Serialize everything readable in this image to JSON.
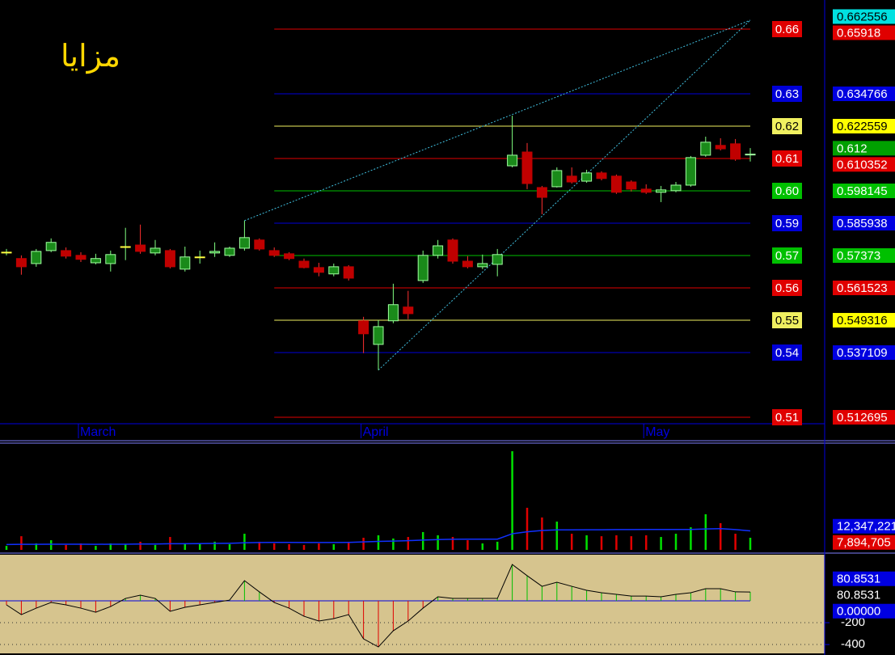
{
  "chart_data": [
    {
      "type": "candlestick",
      "title": "مزايا",
      "title_color": "#ffd700",
      "categories": [
        null,
        null,
        null,
        null,
        null,
        "March",
        null,
        null,
        null,
        null,
        null,
        null,
        null,
        null,
        null,
        null,
        null,
        null,
        null,
        null,
        null,
        null,
        null,
        null,
        "April",
        null,
        null,
        null,
        null,
        null,
        null,
        null,
        null,
        null,
        null,
        null,
        null,
        null,
        null,
        null,
        null,
        null,
        null,
        "May",
        null,
        null,
        null,
        null,
        null,
        null,
        null
      ],
      "open": [
        0.575,
        0.5726,
        0.5707,
        0.5756,
        0.5756,
        0.5738,
        0.571,
        0.5707,
        0.5771,
        0.5777,
        0.5747,
        0.5756,
        0.5686,
        0.5732,
        0.5747,
        0.5738,
        0.5765,
        0.5796,
        0.5756,
        0.5744,
        0.5716,
        0.5692,
        0.5668,
        0.5695,
        0.5491,
        0.5402,
        0.5491,
        0.5543,
        0.5643,
        0.5738,
        0.5796,
        0.5716,
        0.5695,
        0.5704,
        0.6076,
        0.6128,
        0.5994,
        0.5997,
        0.6037,
        0.6018,
        0.6049,
        0.6037,
        0.6015,
        0.5988,
        0.5976,
        0.5982,
        0.6003,
        0.6116,
        0.6153,
        0.6159,
        0.6119
      ],
      "high": [
        0.5762,
        0.5738,
        0.5762,
        0.5802,
        0.5768,
        0.575,
        0.5744,
        0.5756,
        0.5842,
        0.5854,
        0.5796,
        0.5762,
        0.5771,
        0.5756,
        0.5787,
        0.5771,
        0.5869,
        0.5802,
        0.5768,
        0.575,
        0.5726,
        0.571,
        0.5707,
        0.5701,
        0.5506,
        0.5494,
        0.5631,
        0.5604,
        0.5756,
        0.5796,
        0.5802,
        0.5735,
        0.5741,
        0.5762,
        0.6265,
        0.6162,
        0.6,
        0.607,
        0.607,
        0.6061,
        0.6055,
        0.6043,
        0.6021,
        0.6006,
        0.6,
        0.6015,
        0.6113,
        0.6186,
        0.618,
        0.6177,
        0.6143
      ],
      "low": [
        0.5738,
        0.5665,
        0.5695,
        0.575,
        0.5726,
        0.5713,
        0.5704,
        0.5677,
        0.572,
        0.5744,
        0.5738,
        0.5689,
        0.5677,
        0.5707,
        0.5732,
        0.5732,
        0.5756,
        0.5756,
        0.5732,
        0.572,
        0.5689,
        0.5659,
        0.5659,
        0.5643,
        0.5369,
        0.5305,
        0.5482,
        0.5497,
        0.5634,
        0.5726,
        0.5707,
        0.5689,
        0.5686,
        0.5659,
        0.607,
        0.5988,
        0.5893,
        0.5994,
        0.6009,
        0.6012,
        0.6021,
        0.597,
        0.5979,
        0.597,
        0.5939,
        0.5976,
        0.5997,
        0.611,
        0.6134,
        0.6095,
        0.6092
      ],
      "close": [
        0.575,
        0.5695,
        0.5753,
        0.5787,
        0.5735,
        0.5723,
        0.5726,
        0.5741,
        0.5771,
        0.5753,
        0.5765,
        0.5695,
        0.5732,
        0.5732,
        0.5753,
        0.5765,
        0.5805,
        0.5762,
        0.5738,
        0.5726,
        0.5692,
        0.5674,
        0.5695,
        0.5652,
        0.5442,
        0.5469,
        0.5552,
        0.5518,
        0.5738,
        0.5774,
        0.5716,
        0.5695,
        0.5707,
        0.5741,
        0.6116,
        0.6009,
        0.5957,
        0.6058,
        0.6015,
        0.6049,
        0.6028,
        0.5976,
        0.5988,
        0.5976,
        0.5985,
        0.6003,
        0.6107,
        0.6165,
        0.614,
        0.6101,
        0.612
      ],
      "up_color": "#1a8a1a",
      "down_color": "#c00000",
      "flat_color": "#ffff40",
      "ylim": [
        0.51026,
        0.67017
      ],
      "fib_from": 18,
      "levels": [
        {
          "value": 0.65918,
          "label": "0.66",
          "color": "#e00000"
        },
        {
          "value": 0.634766,
          "label": "0.63",
          "color": "#0000d8"
        },
        {
          "value": 0.622559,
          "label": "0.62",
          "color": "#f0f060"
        },
        {
          "value": 0.610352,
          "label": "0.61",
          "color": "#e00000"
        },
        {
          "value": 0.598145,
          "label": "0.60",
          "color": "#00c000"
        },
        {
          "value": 0.585938,
          "label": "0.59",
          "color": "#0000d8"
        },
        {
          "value": 0.57373,
          "label": "0.57",
          "color": "#00c000"
        },
        {
          "value": 0.561523,
          "label": "0.56",
          "color": "#e00000"
        },
        {
          "value": 0.549316,
          "label": "0.55",
          "color": "#f0f060"
        },
        {
          "value": 0.537109,
          "label": "0.54",
          "color": "#0000d8"
        },
        {
          "value": 0.512695,
          "label": "0.51",
          "color": "#e00000"
        }
      ],
      "trendlines": [
        {
          "x": [
            16,
            50
          ],
          "y": [
            0.5869,
            0.662556
          ]
        },
        {
          "x": [
            25,
            50
          ],
          "y": [
            0.5305,
            0.662556
          ]
        }
      ],
      "trend_color": "#40c0e0",
      "markers": [
        {
          "value": 0.662556,
          "label": "0.662556",
          "color": "#00e0e0"
        },
        {
          "value": 0.65918,
          "label": "0.65918",
          "color": "#e00000"
        },
        {
          "value": 0.634766,
          "label": "0.634766",
          "color": "#0000e0"
        },
        {
          "value": 0.622559,
          "label": "0.622559",
          "color": "#ffff00"
        },
        {
          "value": 0.612,
          "label": "0.612",
          "color": "#00a000"
        },
        {
          "value": 0.610352,
          "label": "0.610352",
          "color": "#e00000"
        },
        {
          "value": 0.598145,
          "label": "0.598145",
          "color": "#00c000"
        },
        {
          "value": 0.585938,
          "label": "0.585938",
          "color": "#0000e0"
        },
        {
          "value": 0.57373,
          "label": "0.57373",
          "color": "#00c000"
        },
        {
          "value": 0.561523,
          "label": "0.561523",
          "color": "#e00000"
        },
        {
          "value": 0.549316,
          "label": "0.549316",
          "color": "#ffff00"
        },
        {
          "value": 0.537109,
          "label": "0.537109",
          "color": "#0000e0"
        },
        {
          "value": 0.512695,
          "label": "0.512695",
          "color": "#e00000"
        }
      ]
    },
    {
      "type": "volume",
      "values": [
        2600000,
        8900000,
        4200000,
        6300000,
        3200000,
        4200000,
        2600000,
        4200000,
        3700000,
        5300000,
        3200000,
        8400000,
        3700000,
        4200000,
        5300000,
        3700000,
        10500000,
        5300000,
        4200000,
        3700000,
        3200000,
        4200000,
        3700000,
        5300000,
        7900000,
        9500000,
        7400000,
        8400000,
        11600000,
        9500000,
        8400000,
        6300000,
        4200000,
        5300000,
        64200000,
        27400000,
        21100000,
        18400000,
        10500000,
        9500000,
        8900000,
        9500000,
        8900000,
        9500000,
        8400000,
        10500000,
        14700000,
        23200000,
        17400000,
        10500000,
        7894705
      ],
      "ma": [
        3500000,
        3600000,
        3600000,
        3700000,
        3700000,
        3700000,
        3600000,
        3700000,
        3700000,
        3800000,
        3800000,
        4000000,
        4000000,
        4100000,
        4200000,
        4300000,
        4600000,
        4800000,
        4900000,
        4900000,
        4800000,
        4800000,
        4800000,
        4900000,
        5200000,
        5500000,
        5700000,
        6000000,
        6400000,
        6700000,
        6900000,
        7000000,
        7000000,
        7000000,
        10500000,
        11800000,
        12600000,
        13000000,
        13000000,
        13100000,
        13100000,
        13200000,
        13200000,
        13300000,
        13300000,
        13300000,
        13300000,
        13600000,
        13800000,
        13200000,
        12347221
      ],
      "up_color": "#00e000",
      "down_color": "#e00000",
      "ma_color": "#1030ff",
      "ylim": [
        0,
        69470000
      ],
      "markers": [
        {
          "value": 12347221,
          "label": "12,347,221",
          "color": "#0000e0"
        },
        {
          "value": 7894705,
          "label": "7,894,705",
          "color": "#e00000"
        }
      ]
    },
    {
      "type": "oscillator",
      "values": [
        -37,
        -126,
        -67,
        -15,
        -37,
        -67,
        -104,
        -52,
        22,
        52,
        22,
        -96,
        -59,
        -37,
        -15,
        7,
        185,
        82,
        -15,
        -67,
        -141,
        -185,
        -163,
        -126,
        -348,
        -422,
        -274,
        -185,
        -67,
        37,
        22,
        22,
        22,
        22,
        333,
        230,
        133,
        170,
        133,
        96,
        74,
        59,
        44,
        44,
        37,
        59,
        74,
        111,
        111,
        82,
        80.8531
      ],
      "up_color": "#00c000",
      "down_color": "#e00000",
      "line_color": "#000000",
      "zero_color": "#0000e0",
      "ylim": [
        -481,
        422
      ],
      "yticks": [
        -200,
        -400
      ],
      "grid": true,
      "markers": [
        {
          "value": 80.8531,
          "label": "80.8531",
          "color": "#0000e0"
        },
        {
          "value": 80.8531,
          "label": "80.8531",
          "color": "#000000"
        },
        {
          "value": 0,
          "label": "0.00000",
          "color": "#0000e0"
        }
      ]
    }
  ]
}
